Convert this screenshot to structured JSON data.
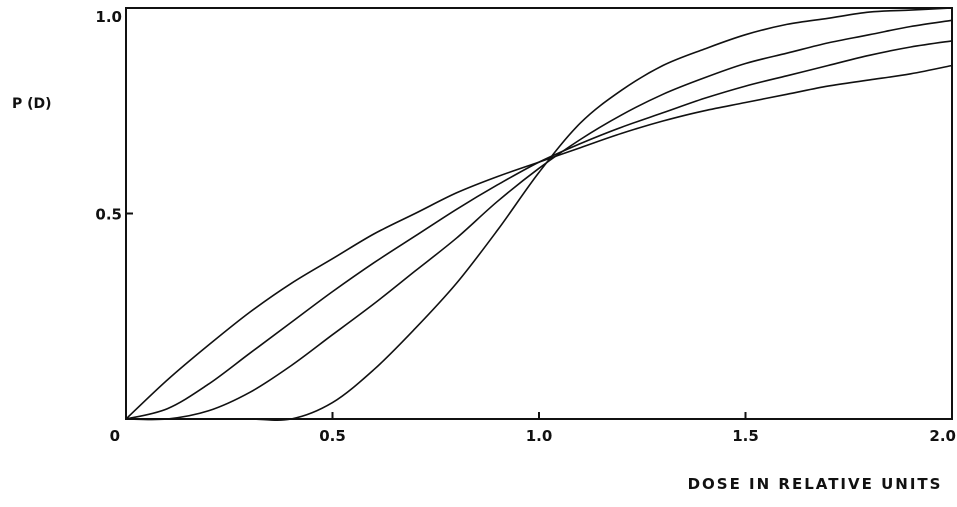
{
  "chart_data": {
    "type": "line",
    "title": "",
    "xlabel": "DOSE IN RELATIVE UNITS",
    "ylabel": "P (D)",
    "xlim": [
      0,
      2.0
    ],
    "ylim": [
      0,
      1.0
    ],
    "grid": false,
    "x_ticks": [
      {
        "value": 0,
        "label": "0"
      },
      {
        "value": 0.5,
        "label": "0.5"
      },
      {
        "value": 1.0,
        "label": "1.0"
      },
      {
        "value": 1.5,
        "label": "1.5"
      },
      {
        "value": 2.0,
        "label": "2.0"
      }
    ],
    "y_ticks": [
      {
        "value": 0.5,
        "label": "0.5"
      },
      {
        "value": 1.0,
        "label": "1.0"
      }
    ],
    "x": [
      0,
      0.1,
      0.2,
      0.3,
      0.4,
      0.5,
      0.6,
      0.7,
      0.8,
      0.9,
      1.0,
      1.1,
      1.2,
      1.3,
      1.4,
      1.5,
      1.6,
      1.7,
      1.8,
      1.9,
      2.0
    ],
    "series": [
      {
        "values": [
          0,
          0.095,
          0.18,
          0.26,
          0.33,
          0.39,
          0.45,
          0.5,
          0.55,
          0.59,
          0.625,
          0.66,
          0.695,
          0.725,
          0.75,
          0.77,
          0.79,
          0.81,
          0.825,
          0.84,
          0.86
        ]
      },
      {
        "values": [
          0,
          0.025,
          0.085,
          0.16,
          0.235,
          0.31,
          0.38,
          0.445,
          0.51,
          0.57,
          0.625,
          0.67,
          0.71,
          0.745,
          0.78,
          0.81,
          0.835,
          0.86,
          0.885,
          0.905,
          0.92
        ]
      },
      {
        "values": [
          0,
          0.0,
          0.02,
          0.065,
          0.13,
          0.205,
          0.28,
          0.36,
          0.44,
          0.53,
          0.61,
          0.68,
          0.74,
          0.79,
          0.83,
          0.865,
          0.89,
          0.915,
          0.935,
          0.955,
          0.97
        ]
      },
      {
        "values": [
          0,
          0.0,
          0.0,
          0.0,
          0.0,
          0.04,
          0.12,
          0.22,
          0.33,
          0.46,
          0.6,
          0.72,
          0.8,
          0.86,
          0.9,
          0.935,
          0.96,
          0.975,
          0.99,
          0.995,
          1.0
        ]
      }
    ]
  }
}
